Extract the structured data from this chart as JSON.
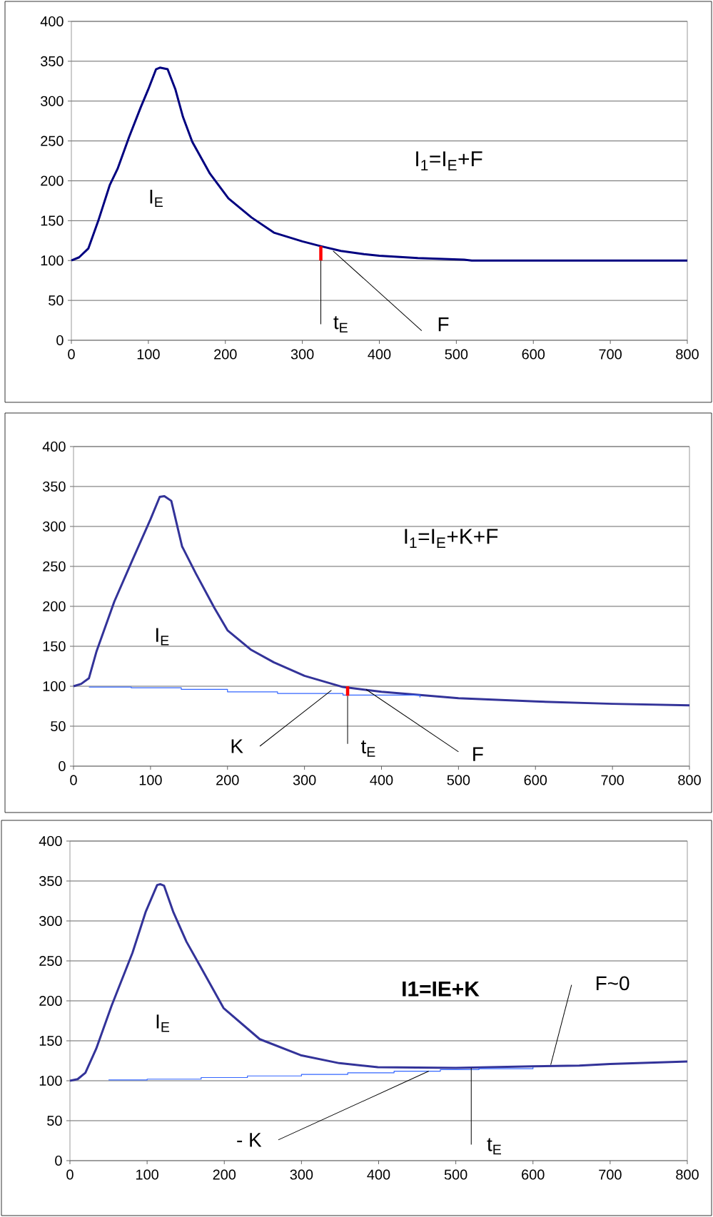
{
  "chart_data": [
    {
      "type": "line",
      "title": "I$_{1}$=I$_{E}$+F",
      "xlim": [
        0,
        800
      ],
      "ylim": [
        0,
        400
      ],
      "xticks": [
        0,
        100,
        200,
        300,
        400,
        500,
        600,
        700,
        800
      ],
      "yticks": [
        0,
        50,
        100,
        150,
        200,
        250,
        300,
        350,
        400
      ],
      "grid": "y",
      "series": [
        {
          "color": "#000080",
          "x": [
            0,
            10,
            22,
            35,
            50,
            60,
            75,
            90,
            100,
            110,
            115,
            125,
            135,
            145,
            157,
            180,
            204,
            234,
            263,
            300,
            324,
            350,
            380,
            400,
            450,
            510,
            520,
            800
          ],
          "values": [
            100,
            104,
            115,
            150,
            195,
            215,
            255,
            292,
            315,
            340,
            342,
            340,
            315,
            280,
            249,
            209,
            178,
            154,
            135,
            124,
            118,
            112,
            108,
            106,
            103,
            101,
            100,
            100
          ]
        },
        {
          "color": "#ff0000",
          "x": [
            324,
            324
          ],
          "values": [
            100,
            118
          ]
        }
      ],
      "annotations": [
        "I$_{E}$",
        {
          "text": "t$_{E}$",
          "x": 324,
          "y": 100
        },
        {
          "text": "F",
          "x": 340,
          "y": 112
        }
      ]
    },
    {
      "type": "line",
      "title": "I$_{1}$=I$_{E}$+K+F",
      "xlim": [
        0,
        800
      ],
      "ylim": [
        0,
        400
      ],
      "xticks": [
        0,
        100,
        200,
        300,
        400,
        500,
        600,
        700,
        800
      ],
      "yticks": [
        0,
        50,
        100,
        150,
        200,
        250,
        300,
        350,
        400
      ],
      "grid": "y",
      "series": [
        {
          "color": "#333399",
          "x": [
            0,
            10,
            20,
            30,
            53,
            77,
            100,
            112,
            118,
            127,
            141,
            159,
            183,
            200,
            230,
            260,
            300,
            350,
            400,
            500,
            600,
            700,
            800
          ],
          "values": [
            100,
            103,
            110,
            144,
            206,
            259,
            309,
            337,
            338,
            332,
            275,
            241,
            198,
            170,
            146,
            130,
            113,
            99,
            93,
            85,
            81,
            78,
            76
          ]
        },
        {
          "type": "step",
          "color": "#3366ff",
          "x": [
            20,
            75,
            140,
            200,
            265,
            350,
            450
          ],
          "values": [
            99,
            98,
            96,
            93,
            91,
            89,
            86
          ]
        },
        {
          "color": "#ff0000",
          "x": [
            356,
            356
          ],
          "values": [
            88,
            100
          ]
        }
      ],
      "annotations": [
        "I$_{E}$",
        {
          "text": "K",
          "x": 335,
          "y": 95
        },
        {
          "text": "t$_{E}$",
          "x": 356,
          "y": 88
        },
        {
          "text": "F",
          "x": 380,
          "y": 96
        }
      ]
    },
    {
      "type": "line",
      "title": "I1=IE+K",
      "xlim": [
        0,
        800
      ],
      "ylim": [
        0,
        400
      ],
      "xticks": [
        0,
        100,
        200,
        300,
        400,
        500,
        600,
        700,
        800
      ],
      "yticks": [
        0,
        50,
        100,
        150,
        200,
        250,
        300,
        350,
        400
      ],
      "grid": "y",
      "series": [
        {
          "color": "#333399",
          "x": [
            0,
            10,
            20,
            34,
            54,
            81,
            98,
            113,
            117,
            122,
            134,
            151,
            169,
            199,
            246,
            299,
            349,
            399,
            500,
            600,
            660,
            700,
            800
          ],
          "values": [
            100,
            102,
            110,
            140,
            194,
            260,
            311,
            345,
            346,
            344,
            311,
            274,
            243,
            191,
            152,
            132,
            122,
            117,
            116,
            118,
            119,
            121,
            124
          ]
        },
        {
          "type": "step",
          "color": "#3366ff",
          "x": [
            50,
            100,
            170,
            230,
            300,
            360,
            420,
            480,
            530,
            600
          ],
          "values": [
            101,
            102,
            104,
            106,
            108,
            110,
            112,
            114,
            115,
            117
          ]
        }
      ],
      "annotations": [
        "I$_{E}$",
        {
          "text": "F~0",
          "x": 623,
          "y": 120
        },
        {
          "text": "- K",
          "x": 465,
          "y": 112
        },
        {
          "text": "t$_{E}$",
          "x": 520,
          "y": 116
        }
      ]
    }
  ]
}
